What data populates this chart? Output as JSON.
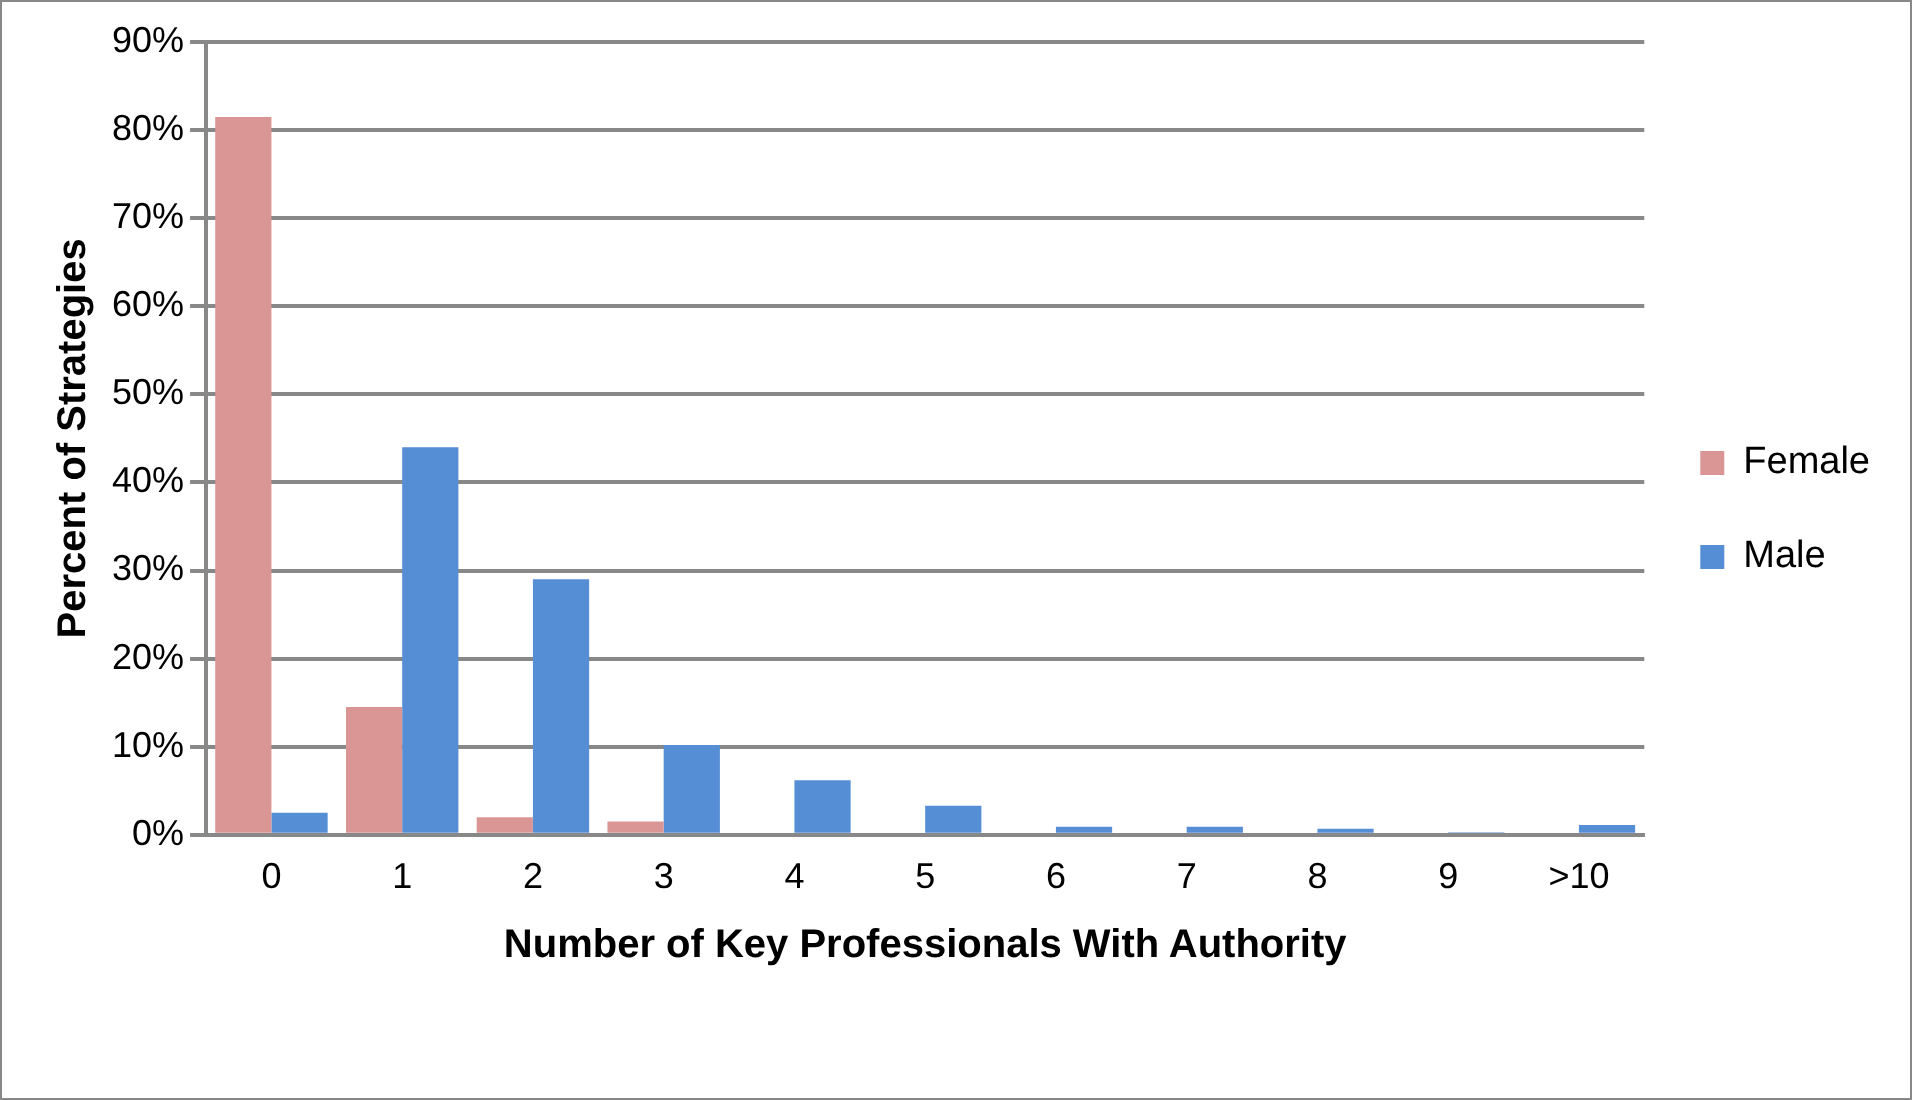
{
  "chart_data": {
    "type": "bar",
    "xlabel": "Number of Key Professionals With Authority",
    "ylabel": "Percent of Strategies",
    "categories": [
      "0",
      "1",
      "2",
      "3",
      "4",
      "5",
      "6",
      "7",
      "8",
      "9",
      ">10"
    ],
    "series": [
      {
        "name": "Female",
        "color": "#d99694",
        "values": [
          81.5,
          14.5,
          2,
          1.5,
          0,
          0,
          0,
          0,
          0,
          0,
          0
        ]
      },
      {
        "name": "Male",
        "color": "#558ed5",
        "values": [
          2.5,
          44,
          29,
          10.2,
          6.2,
          3.3,
          0.9,
          0.9,
          0.7,
          0.3,
          1.1
        ]
      }
    ],
    "ylim": [
      0,
      90
    ],
    "yticks": [
      {
        "value": 0,
        "label": "0%"
      },
      {
        "value": 10,
        "label": "10%"
      },
      {
        "value": 20,
        "label": "20%"
      },
      {
        "value": 30,
        "label": "30%"
      },
      {
        "value": 40,
        "label": "40%"
      },
      {
        "value": 50,
        "label": "50%"
      },
      {
        "value": 60,
        "label": "60%"
      },
      {
        "value": 70,
        "label": "70%"
      },
      {
        "value": 80,
        "label": "80%"
      },
      {
        "value": 90,
        "label": "90%"
      }
    ],
    "grid": "y",
    "legend": "right"
  }
}
